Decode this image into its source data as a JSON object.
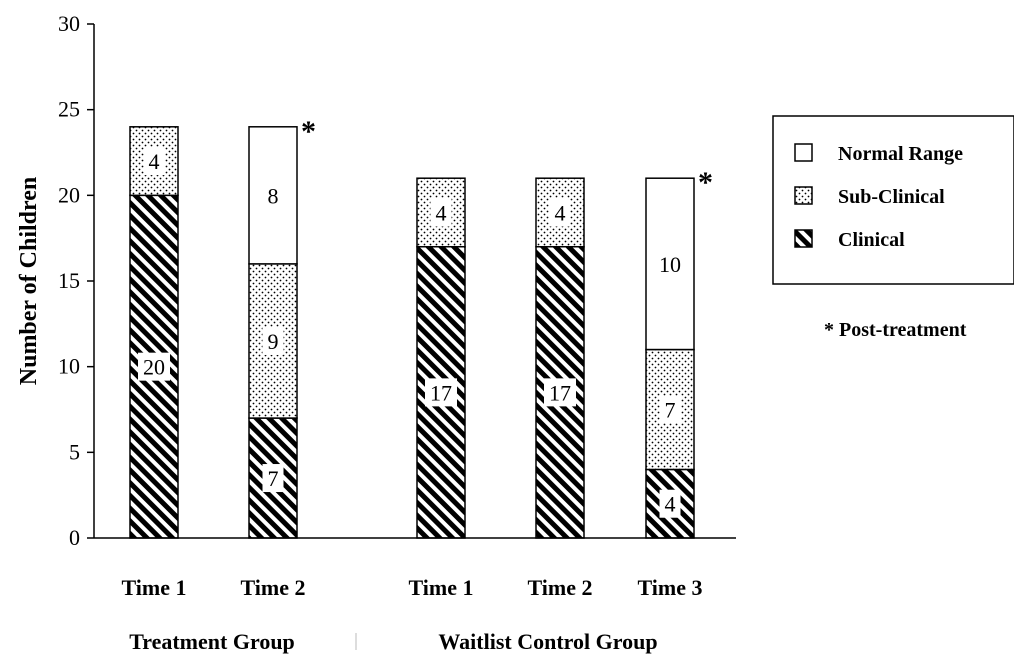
{
  "chart_data": {
    "type": "bar",
    "stacked": true,
    "ylabel": "Number of Children",
    "ylim": [
      0,
      30
    ],
    "yticks": [
      0,
      5,
      10,
      15,
      20,
      25,
      30
    ],
    "categories": [
      "Time 1",
      "Time 2",
      "Time 1",
      "Time 2",
      "Time 3"
    ],
    "groups": [
      {
        "label": "Treatment Group",
        "categories": [
          0,
          1
        ]
      },
      {
        "label": "Waitlist Control Group",
        "categories": [
          2,
          3,
          4
        ]
      }
    ],
    "series": [
      {
        "name": "Clinical",
        "pattern": "hatch",
        "values": [
          20,
          7,
          17,
          17,
          4
        ]
      },
      {
        "name": "Sub-Clinical",
        "pattern": "dots",
        "values": [
          4,
          9,
          4,
          4,
          7
        ]
      },
      {
        "name": "Normal Range",
        "pattern": "blank",
        "values": [
          0,
          8,
          0,
          0,
          10
        ]
      }
    ],
    "legend_order": [
      "Normal Range",
      "Sub-Clinical",
      "Clinical"
    ],
    "legend_position": "right",
    "post_treatment_categories": [
      1,
      4
    ],
    "post_treatment_marker": "*",
    "note": "* Post-treatment",
    "grid": false
  }
}
